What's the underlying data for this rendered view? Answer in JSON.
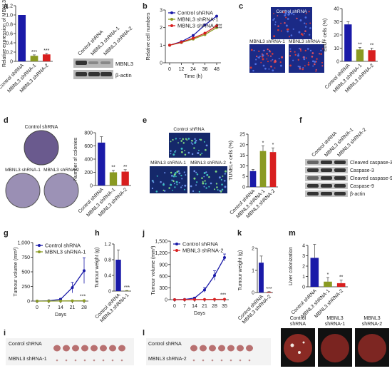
{
  "colors": {
    "blue": "#1a1aa8",
    "olive": "#8a9a22",
    "red": "#d81f1f",
    "black": "#222222"
  },
  "panels": {
    "a": "a",
    "b": "b",
    "c": "c",
    "d": "d",
    "e": "e",
    "f": "f",
    "g": "g",
    "h": "h",
    "i": "i",
    "j": "j",
    "k": "k",
    "l": "l",
    "m": "m"
  },
  "groups": {
    "ctrl": "Control shRNA",
    "sh1": "MBNL3 shRNA-1",
    "sh2": "MBNL3 shRNA-2",
    "mb1_l1": "MBNL3",
    "mb1_l2": "shRNA-1",
    "mb2_l1": "MBNL3",
    "mb2_l2": "shRNA-2",
    "ctrl_l1": "Control",
    "ctrl_l2": "shRNA"
  },
  "blot_labels": {
    "a": [
      "MBNL3",
      "β-actin"
    ],
    "f": [
      "Cleaved caspase-3",
      "Caspase-3",
      "Cleaved caspase-9",
      "Caspase-9",
      "β-actin"
    ]
  },
  "image_labels": {
    "c": [
      "Control shRNA",
      "MBNL3 shRNA-1",
      "MBNL3 shRNA-2"
    ],
    "d": [
      "Control shRNA",
      "MBNL3 shRNA-1",
      "MBNL3 shRNA-2"
    ],
    "e": [
      "Control shRNA",
      "MBNL3 shRNA-1",
      "MBNL3 shRNA-2"
    ],
    "i": [
      "Control shRNA",
      "MBNL3 shRNA-1"
    ],
    "l": [
      "Control shRNA",
      "MBNL3 shRNA-2"
    ]
  },
  "chart_data": [
    {
      "id": "a",
      "type": "bar",
      "categories": [
        "Control shRNA",
        "MBNL3 shRNA-1",
        "MBNL3 shRNA-2"
      ],
      "values": [
        1.0,
        0.12,
        0.15
      ],
      "errors": [
        0.0,
        0.02,
        0.02
      ],
      "ylabel": "Relative expression of MBNL3",
      "ylim": [
        0,
        1.2
      ],
      "yticks": [
        "0",
        "0.2",
        "0.4",
        "0.6",
        "0.8",
        "1.0",
        "1.2"
      ],
      "annotations": [
        "",
        "***",
        "***"
      ]
    },
    {
      "id": "b",
      "type": "line",
      "x": [
        0,
        12,
        24,
        36,
        48
      ],
      "xlabel": "Time (h)",
      "ylabel": "Relative cell numbers",
      "ylim": [
        0,
        3
      ],
      "yticks": [
        "0",
        "1",
        "2",
        "3"
      ],
      "xticks": [
        "0",
        "12",
        "24",
        "36",
        "48"
      ],
      "series": [
        {
          "name": "Control shRNA",
          "values": [
            1.0,
            1.2,
            1.55,
            2.15,
            2.65
          ]
        },
        {
          "name": "MBNL3 shRNA-1",
          "values": [
            1.0,
            1.15,
            1.35,
            1.6,
            2.0
          ]
        },
        {
          "name": "MBNL3 shRNA-2",
          "values": [
            1.0,
            1.17,
            1.4,
            1.68,
            2.1
          ]
        }
      ],
      "annotations": [
        "**",
        "**"
      ]
    },
    {
      "id": "c",
      "type": "bar",
      "categories": [
        "Control shRNA",
        "MBNL3 shRNA-1",
        "MBNL3 shRNA-2"
      ],
      "values": [
        28,
        9,
        8.5
      ],
      "errors": [
        2,
        1.5,
        1.5
      ],
      "ylabel": "EdU+ cells (%)",
      "ylim": [
        0,
        40
      ],
      "yticks": [
        "0",
        "10",
        "20",
        "30",
        "40"
      ],
      "annotations": [
        "",
        "**",
        "**"
      ]
    },
    {
      "id": "d",
      "type": "bar",
      "categories": [
        "Control shRNA",
        "MBNL3 shRNA-1",
        "MBNL3 shRNA-2"
      ],
      "values": [
        650,
        200,
        210
      ],
      "errors": [
        90,
        30,
        30
      ],
      "ylabel": "Number of colonies",
      "ylim": [
        0,
        800
      ],
      "yticks": [
        "0",
        "200",
        "400",
        "600",
        "800"
      ],
      "annotations": [
        "",
        "**",
        "**"
      ]
    },
    {
      "id": "e",
      "type": "bar",
      "categories": [
        "Control shRNA",
        "MBNL3 shRNA-1",
        "MBNL3 shRNA-2"
      ],
      "values": [
        7.5,
        17,
        16.5
      ],
      "errors": [
        0.8,
        2.5,
        2
      ],
      "ylabel": "TUNEL+ cells (%)",
      "ylim": [
        0,
        25
      ],
      "yticks": [
        "0",
        "5",
        "10",
        "15",
        "20",
        "25"
      ],
      "annotations": [
        "",
        "*",
        "*"
      ]
    },
    {
      "id": "g",
      "type": "line",
      "x": [
        0,
        7,
        14,
        21,
        28
      ],
      "xlabel": "Days",
      "ylabel": "Tumour volume (mm³)",
      "ylim": [
        0,
        1000
      ],
      "yticks": [
        "0",
        "250",
        "500",
        "750",
        "1,000"
      ],
      "xticks": [
        "0",
        "7",
        "14",
        "21",
        "28"
      ],
      "series": [
        {
          "name": "Control shRNA",
          "values": [
            0,
            5,
            30,
            230,
            520
          ],
          "errors": [
            0,
            3,
            15,
            90,
            220
          ]
        },
        {
          "name": "MBNL3 shRNA-1",
          "values": [
            0,
            0,
            2,
            4,
            6
          ],
          "errors": [
            0,
            0,
            1,
            2,
            3
          ]
        }
      ],
      "annotations": [
        "***"
      ]
    },
    {
      "id": "h",
      "type": "bar",
      "categories": [
        "Control shRNA",
        "MBNL3 shRNA-1"
      ],
      "values": [
        0.8,
        0.01
      ],
      "errors": [
        0.25,
        0.005
      ],
      "ylabel": "Tumour weight (g)",
      "ylim": [
        0,
        1.2
      ],
      "yticks": [
        "0",
        "0.4",
        "0.8",
        "1.2"
      ],
      "annotations": [
        "",
        "***"
      ]
    },
    {
      "id": "j",
      "type": "line",
      "x": [
        0,
        7,
        14,
        21,
        28,
        35
      ],
      "xlabel": "Days",
      "ylabel": "Tumour volume (mm³)",
      "ylim": [
        0,
        1500
      ],
      "yticks": [
        "0",
        "300",
        "600",
        "900",
        "1,200",
        "1,500"
      ],
      "xticks": [
        "0",
        "7",
        "14",
        "21",
        "28",
        "35"
      ],
      "series": [
        {
          "name": "Control shRNA",
          "values": [
            0,
            5,
            40,
            250,
            620,
            1080
          ],
          "errors": [
            0,
            3,
            20,
            60,
            120,
            90
          ]
        },
        {
          "name": "MBNL3 shRNA-2",
          "values": [
            0,
            0,
            3,
            5,
            7,
            9
          ],
          "errors": [
            0,
            0,
            1,
            2,
            2,
            3
          ]
        }
      ],
      "annotations": [
        "***"
      ]
    },
    {
      "id": "k",
      "type": "bar",
      "categories": [
        "Control shRNA",
        "MBNL3 shRNA-2"
      ],
      "values": [
        1.35,
        0.03
      ],
      "errors": [
        0.3,
        0.01
      ],
      "ylabel": "Tumour weight (g)",
      "ylim": [
        0,
        2
      ],
      "yticks": [
        "0",
        "1",
        "2"
      ],
      "annotations": [
        "",
        "***"
      ]
    },
    {
      "id": "m",
      "type": "bar",
      "categories": [
        "Control shRNA",
        "MBNL3 shRNA-1",
        "MBNL3 shRNA-2"
      ],
      "values": [
        2.8,
        0.5,
        0.35
      ],
      "errors": [
        1.3,
        0.4,
        0.3
      ],
      "ylabel": "Liver colonization",
      "ylim": [
        0,
        4
      ],
      "yticks": [
        "0",
        "1",
        "2",
        "3",
        "4"
      ],
      "annotations": [
        "",
        "*",
        "**"
      ]
    }
  ]
}
